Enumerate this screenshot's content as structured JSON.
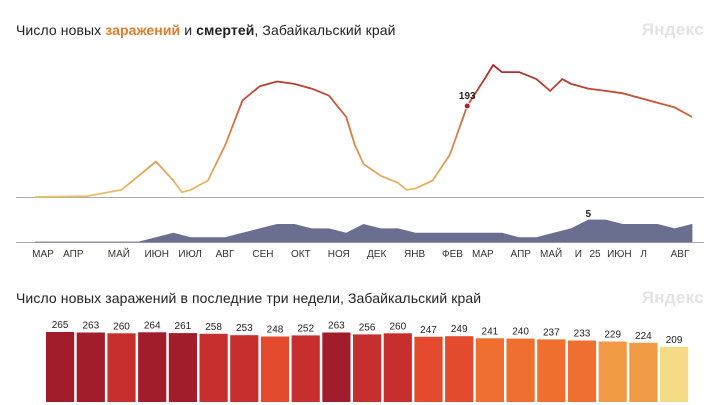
{
  "header": {
    "top_title_prefix": "Число новых ",
    "top_title_cases": "заражений",
    "top_title_and": " и ",
    "top_title_deaths": "смертей",
    "top_title_region": ", Забайкальский край",
    "bottom_title": "Число новых заражений в последние три недели, Забайкальский край",
    "brand": "Яндекс"
  },
  "colors": {
    "cases_low": "#e9c46a",
    "cases_high": "#a8262f",
    "deaths": "#6b6f8f",
    "axis": "#999999",
    "bar_scale": [
      "#a11d2c",
      "#c62f2e",
      "#e44a2e",
      "#ee6f2f",
      "#f19a45",
      "#f3bd5d",
      "#f6db86"
    ]
  },
  "chart_data": [
    {
      "type": "line",
      "title": "Число новых заражений и смертей, Забайкальский край",
      "x_ticks": [
        "МАР",
        "АПР",
        "МАЙ",
        "ИЮН",
        "ИЮЛ",
        "АВГ",
        "СЕН",
        "ОКТ",
        "НОЯ",
        "ДЕК",
        "ЯНВ",
        "ФЕВ",
        "МАР",
        "АПР",
        "МАЙ",
        "И",
        "25",
        "ИЮН",
        "Л",
        "АВГ"
      ],
      "series": [
        {
          "name": "заражений",
          "x": [
            0,
            3,
            5,
            6,
            7,
            8,
            8.5,
            9,
            10,
            11,
            12,
            13,
            14,
            15,
            16,
            17,
            18,
            18.5,
            19,
            20,
            21,
            21.5,
            22,
            23,
            24,
            25,
            26,
            26.5,
            27,
            28,
            29,
            29.8,
            30.5,
            31,
            32,
            33,
            34,
            35,
            36,
            37,
            38
          ],
          "values": [
            0,
            2,
            15,
            45,
            75,
            35,
            10,
            15,
            35,
            110,
            205,
            235,
            245,
            240,
            230,
            215,
            170,
            110,
            70,
            45,
            30,
            15,
            18,
            35,
            90,
            193,
            250,
            280,
            265,
            265,
            250,
            225,
            250,
            240,
            230,
            225,
            220,
            210,
            200,
            190,
            170
          ]
        },
        {
          "name": "смертей",
          "x": [
            0,
            6,
            7,
            8,
            9,
            10,
            11,
            12,
            13,
            14,
            15,
            16,
            17,
            18,
            19,
            20,
            21,
            22,
            23,
            24,
            25,
            26,
            27,
            28,
            29,
            30,
            31,
            32,
            33,
            34,
            35,
            36,
            37,
            38
          ],
          "values": [
            0,
            0,
            1,
            2,
            1,
            1,
            1,
            2,
            3,
            4,
            4,
            3,
            3,
            2,
            4,
            3,
            3,
            2,
            2,
            2,
            2,
            2,
            2,
            1,
            1,
            2,
            3,
            5,
            5,
            4,
            4,
            4,
            3,
            4
          ]
        }
      ],
      "annotations": [
        {
          "label": "193",
          "series": "заражений",
          "x": 25,
          "y": 193
        },
        {
          "label": "5",
          "series": "смертей",
          "x": 32,
          "y": 5
        }
      ]
    },
    {
      "type": "bar",
      "title": "Число новых заражений в последние три недели, Забайкальский край",
      "values": [
        265,
        263,
        260,
        264,
        261,
        258,
        253,
        248,
        252,
        263,
        256,
        260,
        247,
        249,
        241,
        240,
        237,
        233,
        229,
        224,
        209
      ]
    }
  ]
}
